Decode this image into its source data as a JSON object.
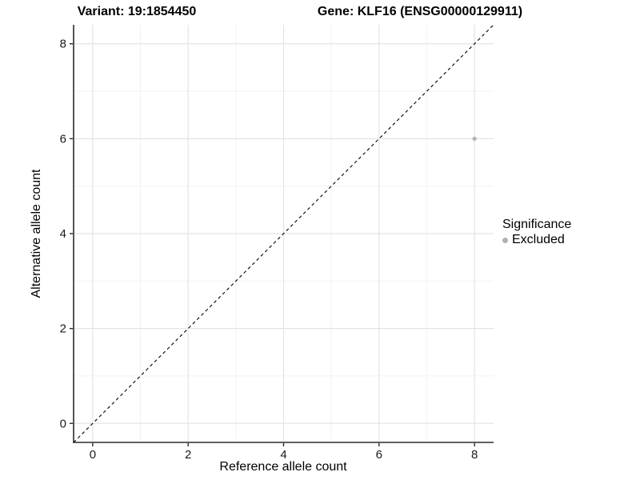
{
  "titles": {
    "variant": "Variant: 19:1854450",
    "gene": "Gene: KLF16 (ENSG00000129911)"
  },
  "legend": {
    "title": "Significance",
    "items": [
      {
        "label": "Excluded",
        "color": "#b2b2b2"
      }
    ]
  },
  "colors": {
    "point": "#b2b2b2",
    "grid_major": "#e4e4e4",
    "grid_minor": "#f0f0f0",
    "axis_line": "#2b2b2b",
    "reference_line": "#000000",
    "text": "#000000"
  },
  "chart_data": {
    "type": "scatter",
    "title": "Variant: 19:1854450    Gene: KLF16 (ENSG00000129911)",
    "xlabel": "Reference allele count",
    "ylabel": "Alternative allele count",
    "xlim": [
      -0.4,
      8.4
    ],
    "ylim": [
      -0.4,
      8.4
    ],
    "x_ticks": [
      0,
      2,
      4,
      6,
      8
    ],
    "y_ticks": [
      0,
      2,
      4,
      6,
      8
    ],
    "x_minor_ticks": [
      1,
      3,
      5,
      7
    ],
    "y_minor_ticks": [
      1,
      3,
      5,
      7
    ],
    "grid": "major+minor",
    "legend_position": "right",
    "legend_title": "Significance",
    "series": [
      {
        "name": "Excluded",
        "color": "#b2b2b2",
        "points": [
          {
            "x": 8,
            "y": 6
          }
        ]
      }
    ],
    "reference_line": {
      "equation": "y = x",
      "style": "dashed",
      "color": "#000000"
    }
  }
}
